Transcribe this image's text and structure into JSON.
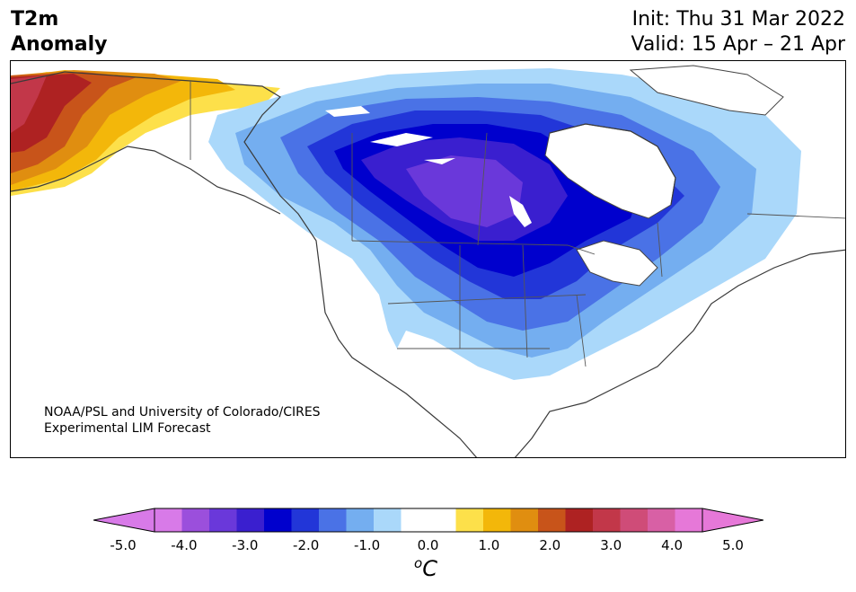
{
  "header": {
    "title_line1": "T2m",
    "title_line2": "Anomaly",
    "init": "Init: Thu 31 Mar 2022",
    "valid": "Valid: 15 Apr – 21 Apr"
  },
  "credit": {
    "line1": "NOAA/PSL and University of Colorado/CIRES",
    "line2": "Experimental LIM Forecast"
  },
  "colorbar": {
    "unit_sup": "o",
    "unit": "C",
    "ticks": [
      "-5.0",
      "-4.0",
      "-3.0",
      "-2.0",
      "-1.0",
      "0.0",
      "1.0",
      "2.0",
      "3.0",
      "4.0",
      "5.0"
    ],
    "colors": [
      "#d87ae8",
      "#9b4fdc",
      "#6a38da",
      "#3a1fcf",
      "#0000cd",
      "#2236d8",
      "#4a72e6",
      "#74aef0",
      "#aad8fa",
      "#ffffff",
      "#ffffff",
      "#fde04a",
      "#f3b70a",
      "#e08e10",
      "#c8541a",
      "#ae2222",
      "#c23749",
      "#cf4c78",
      "#d860a5",
      "#e678d8"
    ]
  },
  "map": {
    "cold_anomaly_colors": [
      "#aad8fa",
      "#74aef0",
      "#4a72e6",
      "#2236d8",
      "#0000cd",
      "#3a1fcf",
      "#6a38da"
    ],
    "warm_anomaly_colors": [
      "#fde04a",
      "#f3b70a",
      "#e08e10",
      "#c8541a",
      "#ae2222",
      "#c23749"
    ]
  }
}
